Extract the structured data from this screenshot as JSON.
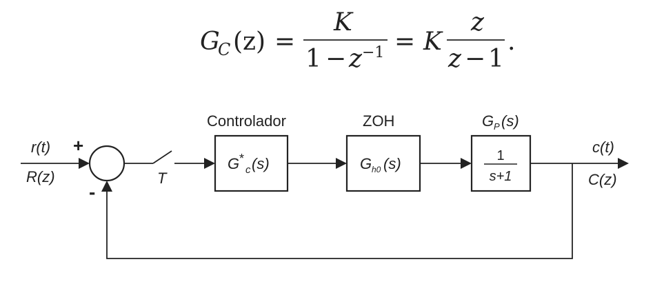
{
  "equation": {
    "lhs_G": "G",
    "lhs_sub": "C",
    "lhs_arg": "(z)",
    "eq1": "=",
    "frac1_num": "K",
    "frac1_den_one": "1",
    "frac1_den_minus": "−",
    "frac1_den_z": "z",
    "frac1_den_exp": "−1",
    "eq2": "=",
    "K2": "K",
    "frac2_num": "z",
    "frac2_den_z": "z",
    "frac2_den_minus": "−",
    "frac2_den_one": "1",
    "period": "."
  },
  "diagram": {
    "input_time": "r(t)",
    "input_z": "R(z)",
    "plus_sign": "+",
    "minus_sign": "-",
    "sampler_label": "T",
    "controller_title": "Controlador",
    "controller_G": "G",
    "controller_star": "*",
    "controller_sub": "c",
    "controller_arg": "(s)",
    "zoh_title": "ZOH",
    "zoh_G": "G",
    "zoh_sub": "h0",
    "zoh_arg": "(s)",
    "plant_title_G": "G",
    "plant_title_sub": "P",
    "plant_title_arg": "(s)",
    "plant_num": "1",
    "plant_den": "s+1",
    "output_time": "c(t)",
    "output_z": "C(z)"
  }
}
